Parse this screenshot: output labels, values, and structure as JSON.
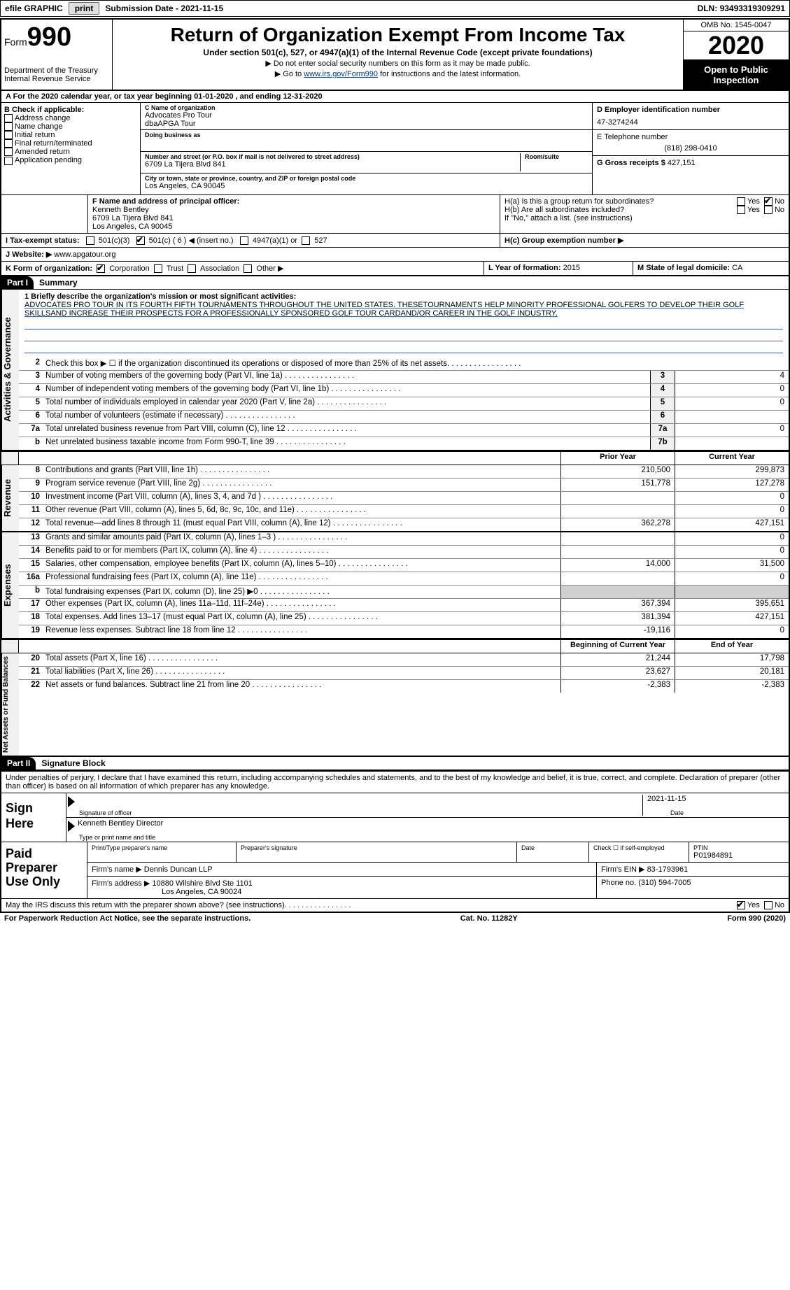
{
  "topbar": {
    "efile": "efile GRAPHIC",
    "print": "print",
    "subdate_label": "Submission Date - ",
    "subdate": "2021-11-15",
    "dln_label": "DLN: ",
    "dln": "93493319309291"
  },
  "header": {
    "form_word": "Form",
    "form_num": "990",
    "dept": "Department of the Treasury\nInternal Revenue Service",
    "title": "Return of Organization Exempt From Income Tax",
    "sub": "Under section 501(c), 527, or 4947(a)(1) of the Internal Revenue Code (except private foundations)",
    "arrow1": "▶ Do not enter social security numbers on this form as it may be made public.",
    "arrow2_pre": "▶ Go to ",
    "arrow2_link": "www.irs.gov/Form990",
    "arrow2_post": " for instructions and the latest information.",
    "omb": "OMB No. 1545-0047",
    "year": "2020",
    "open": "Open to Public Inspection"
  },
  "lineA": "A  For the 2020 calendar year, or tax year beginning 01-01-2020   , and ending 12-31-2020",
  "boxB": {
    "hdr": "B Check if applicable:",
    "items": [
      "Address change",
      "Name change",
      "Initial return",
      "Final return/terminated",
      "Amended return",
      "Application pending"
    ]
  },
  "boxC": {
    "name_lbl": "C Name of organization",
    "name1": "Advocates Pro Tour",
    "name2": "dbaAPGA Tour",
    "dba_lbl": "Doing business as",
    "addr_lbl": "Number and street (or P.O. box if mail is not delivered to street address)",
    "room_lbl": "Room/suite",
    "addr": "6709 La Tijera Blvd 841",
    "city_lbl": "City or town, state or province, country, and ZIP or foreign postal code",
    "city": "Los Angeles, CA  90045"
  },
  "boxD": {
    "lbl": "D Employer identification number",
    "val": "47-3274244"
  },
  "boxE": {
    "lbl": "E Telephone number",
    "val": "(818) 298-0410"
  },
  "boxG": {
    "lbl": "G Gross receipts $",
    "val": "427,151"
  },
  "boxF": {
    "lbl": "F Name and address of principal officer:",
    "name": "Kenneth Bentley",
    "addr1": "6709 La Tijera Blvd 841",
    "addr2": "Los Angeles, CA  90045"
  },
  "boxH": {
    "a": "H(a)  Is this a group return for subordinates?",
    "b": "H(b)  Are all subordinates included?",
    "b_note": "If \"No,\" attach a list. (see instructions)",
    "c": "H(c)  Group exemption number ▶",
    "yes": "Yes",
    "no": "No"
  },
  "lineI": {
    "lbl": "I   Tax-exempt status:",
    "o1": "501(c)(3)",
    "o2": "501(c) ( 6 ) ◀ (insert no.)",
    "o3": "4947(a)(1) or",
    "o4": "527"
  },
  "lineJ": {
    "lbl": "J  Website: ▶",
    "val": "www.apgatour.org"
  },
  "lineK": {
    "lbl": "K Form of organization:",
    "o1": "Corporation",
    "o2": "Trust",
    "o3": "Association",
    "o4": "Other ▶"
  },
  "lineL": {
    "lbl": "L Year of formation:",
    "val": "2015"
  },
  "lineM": {
    "lbl": "M State of legal domicile:",
    "val": "CA"
  },
  "part1": {
    "hdr": "Part I",
    "title": "Summary"
  },
  "mission": {
    "lbl": "1  Briefly describe the organization's mission or most significant activities:",
    "text": "ADVOCATES PRO TOUR IN ITS FOURTH FIFTH TOURNAMENTS THROUGHOUT THE UNITED STATES. THESETOURNAMENTS HELP MINORITY PROFESSIONAL GOLFERS TO DEVELOP THEIR GOLF SKILLSAND INCREASE THEIR PROSPECTS FOR A PROFESSIONALLY SPONSORED GOLF TOUR CARDAND/OR CAREER IN THE GOLF INDUSTRY."
  },
  "s1_rows": [
    {
      "n": "2",
      "d": "Check this box ▶ ☐ if the organization discontinued its operations or disposed of more than 25% of its net assets.",
      "box": "",
      "v": ""
    },
    {
      "n": "3",
      "d": "Number of voting members of the governing body (Part VI, line 1a)",
      "box": "3",
      "v": "4"
    },
    {
      "n": "4",
      "d": "Number of independent voting members of the governing body (Part VI, line 1b)",
      "box": "4",
      "v": "0"
    },
    {
      "n": "5",
      "d": "Total number of individuals employed in calendar year 2020 (Part V, line 2a)",
      "box": "5",
      "v": "0"
    },
    {
      "n": "6",
      "d": "Total number of volunteers (estimate if necessary)",
      "box": "6",
      "v": ""
    },
    {
      "n": "7a",
      "d": "Total unrelated business revenue from Part VIII, column (C), line 12",
      "box": "7a",
      "v": "0"
    },
    {
      "n": "b",
      "d": "Net unrelated business taxable income from Form 990-T, line 39",
      "box": "7b",
      "v": ""
    }
  ],
  "col_hdrs": {
    "prior": "Prior Year",
    "current": "Current Year",
    "begin": "Beginning of Current Year",
    "end": "End of Year"
  },
  "rev_rows": [
    {
      "n": "8",
      "d": "Contributions and grants (Part VIII, line 1h)",
      "p": "210,500",
      "c": "299,873"
    },
    {
      "n": "9",
      "d": "Program service revenue (Part VIII, line 2g)",
      "p": "151,778",
      "c": "127,278"
    },
    {
      "n": "10",
      "d": "Investment income (Part VIII, column (A), lines 3, 4, and 7d )",
      "p": "",
      "c": "0"
    },
    {
      "n": "11",
      "d": "Other revenue (Part VIII, column (A), lines 5, 6d, 8c, 9c, 10c, and 11e)",
      "p": "",
      "c": "0"
    },
    {
      "n": "12",
      "d": "Total revenue—add lines 8 through 11 (must equal Part VIII, column (A), line 12)",
      "p": "362,278",
      "c": "427,151"
    }
  ],
  "exp_rows": [
    {
      "n": "13",
      "d": "Grants and similar amounts paid (Part IX, column (A), lines 1–3 )",
      "p": "",
      "c": "0"
    },
    {
      "n": "14",
      "d": "Benefits paid to or for members (Part IX, column (A), line 4)",
      "p": "",
      "c": "0"
    },
    {
      "n": "15",
      "d": "Salaries, other compensation, employee benefits (Part IX, column (A), lines 5–10)",
      "p": "14,000",
      "c": "31,500"
    },
    {
      "n": "16a",
      "d": "Professional fundraising fees (Part IX, column (A), line 11e)",
      "p": "",
      "c": "0"
    },
    {
      "n": "b",
      "d": "Total fundraising expenses (Part IX, column (D), line 25) ▶0",
      "p": "shade",
      "c": "shade"
    },
    {
      "n": "17",
      "d": "Other expenses (Part IX, column (A), lines 11a–11d, 11f–24e)",
      "p": "367,394",
      "c": "395,651"
    },
    {
      "n": "18",
      "d": "Total expenses. Add lines 13–17 (must equal Part IX, column (A), line 25)",
      "p": "381,394",
      "c": "427,151"
    },
    {
      "n": "19",
      "d": "Revenue less expenses. Subtract line 18 from line 12",
      "p": "-19,116",
      "c": "0"
    }
  ],
  "net_rows": [
    {
      "n": "20",
      "d": "Total assets (Part X, line 16)",
      "p": "21,244",
      "c": "17,798"
    },
    {
      "n": "21",
      "d": "Total liabilities (Part X, line 26)",
      "p": "23,627",
      "c": "20,181"
    },
    {
      "n": "22",
      "d": "Net assets or fund balances. Subtract line 21 from line 20",
      "p": "-2,383",
      "c": "-2,383"
    }
  ],
  "side_tabs": {
    "s1": "Activities & Governance",
    "s2": "Revenue",
    "s3": "Expenses",
    "s4": "Net Assets or Fund Balances"
  },
  "part2": {
    "hdr": "Part II",
    "title": "Signature Block"
  },
  "sig": {
    "decl": "Under penalties of perjury, I declare that I have examined this return, including accompanying schedules and statements, and to the best of my knowledge and belief, it is true, correct, and complete. Declaration of preparer (other than officer) is based on all information of which preparer has any knowledge.",
    "sign_here": "Sign Here",
    "sig_officer": "Signature of officer",
    "date": "Date",
    "date_val": "2021-11-15",
    "name_title": "Kenneth Bentley  Director",
    "type_name": "Type or print name and title"
  },
  "paid": {
    "hdr": "Paid Preparer Use Only",
    "print_lbl": "Print/Type preparer's name",
    "sig_lbl": "Preparer's signature",
    "date_lbl": "Date",
    "check_lbl": "Check ☐ if self-employed",
    "ptin_lbl": "PTIN",
    "ptin": "P01984891",
    "firm_name_lbl": "Firm's name   ▶",
    "firm_name": "Dennis Duncan LLP",
    "firm_ein_lbl": "Firm's EIN ▶",
    "firm_ein": "83-1793961",
    "firm_addr_lbl": "Firm's address ▶",
    "firm_addr1": "10880 Wilshire Blvd Ste 1101",
    "firm_addr2": "Los Angeles, CA  90024",
    "phone_lbl": "Phone no.",
    "phone": "(310) 594-7005"
  },
  "discuss": {
    "q": "May the IRS discuss this return with the preparer shown above? (see instructions)",
    "yes": "Yes",
    "no": "No"
  },
  "footer": {
    "left": "For Paperwork Reduction Act Notice, see the separate instructions.",
    "mid": "Cat. No. 11282Y",
    "right_pre": "Form ",
    "right_form": "990",
    "right_post": " (2020)"
  }
}
